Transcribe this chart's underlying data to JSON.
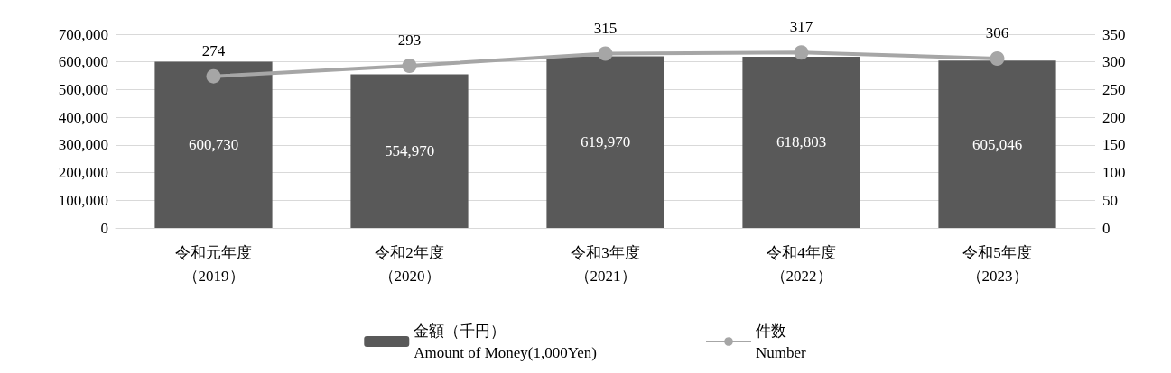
{
  "chart_data": {
    "type": "bar",
    "categories": [
      "令和元年度（2019）",
      "令和2年度（2020）",
      "令和3年度（2021）",
      "令和4年度（2022）",
      "令和5年度（2023）"
    ],
    "series": [
      {
        "name": "金額（千円）\nAmount of Money(1,000Yen)",
        "color": "#595959",
        "values": [
          600730,
          554970,
          619970,
          618803,
          605046
        ],
        "value_labels": [
          "600,730",
          "554,970",
          "619,970",
          "618,803",
          "605,046"
        ]
      },
      {
        "name": "件数\nNumber",
        "type": "line",
        "axis": "y2",
        "color": "#a6a6a6",
        "marker": "circle",
        "values": [
          274,
          293,
          315,
          317,
          306
        ]
      }
    ],
    "ylim": [
      0,
      700000
    ],
    "yticks": [
      0,
      {
        "value": 100000,
        "label": "100,000"
      },
      {
        "value": 200000,
        "label": "200,000"
      },
      {
        "value": 300000,
        "label": "300,000"
      },
      {
        "value": 400000,
        "label": "400,000"
      },
      {
        "value": 500000,
        "label": "500,000"
      },
      {
        "value": 600000,
        "label": "600,000"
      },
      {
        "value": 700000,
        "label": "700,000"
      }
    ],
    "y2lim": [
      0,
      350
    ],
    "y2ticks": [
      0,
      50,
      100,
      150,
      200,
      250,
      300,
      350
    ],
    "grid": "y",
    "legend": "bottom",
    "data_labels": true
  }
}
